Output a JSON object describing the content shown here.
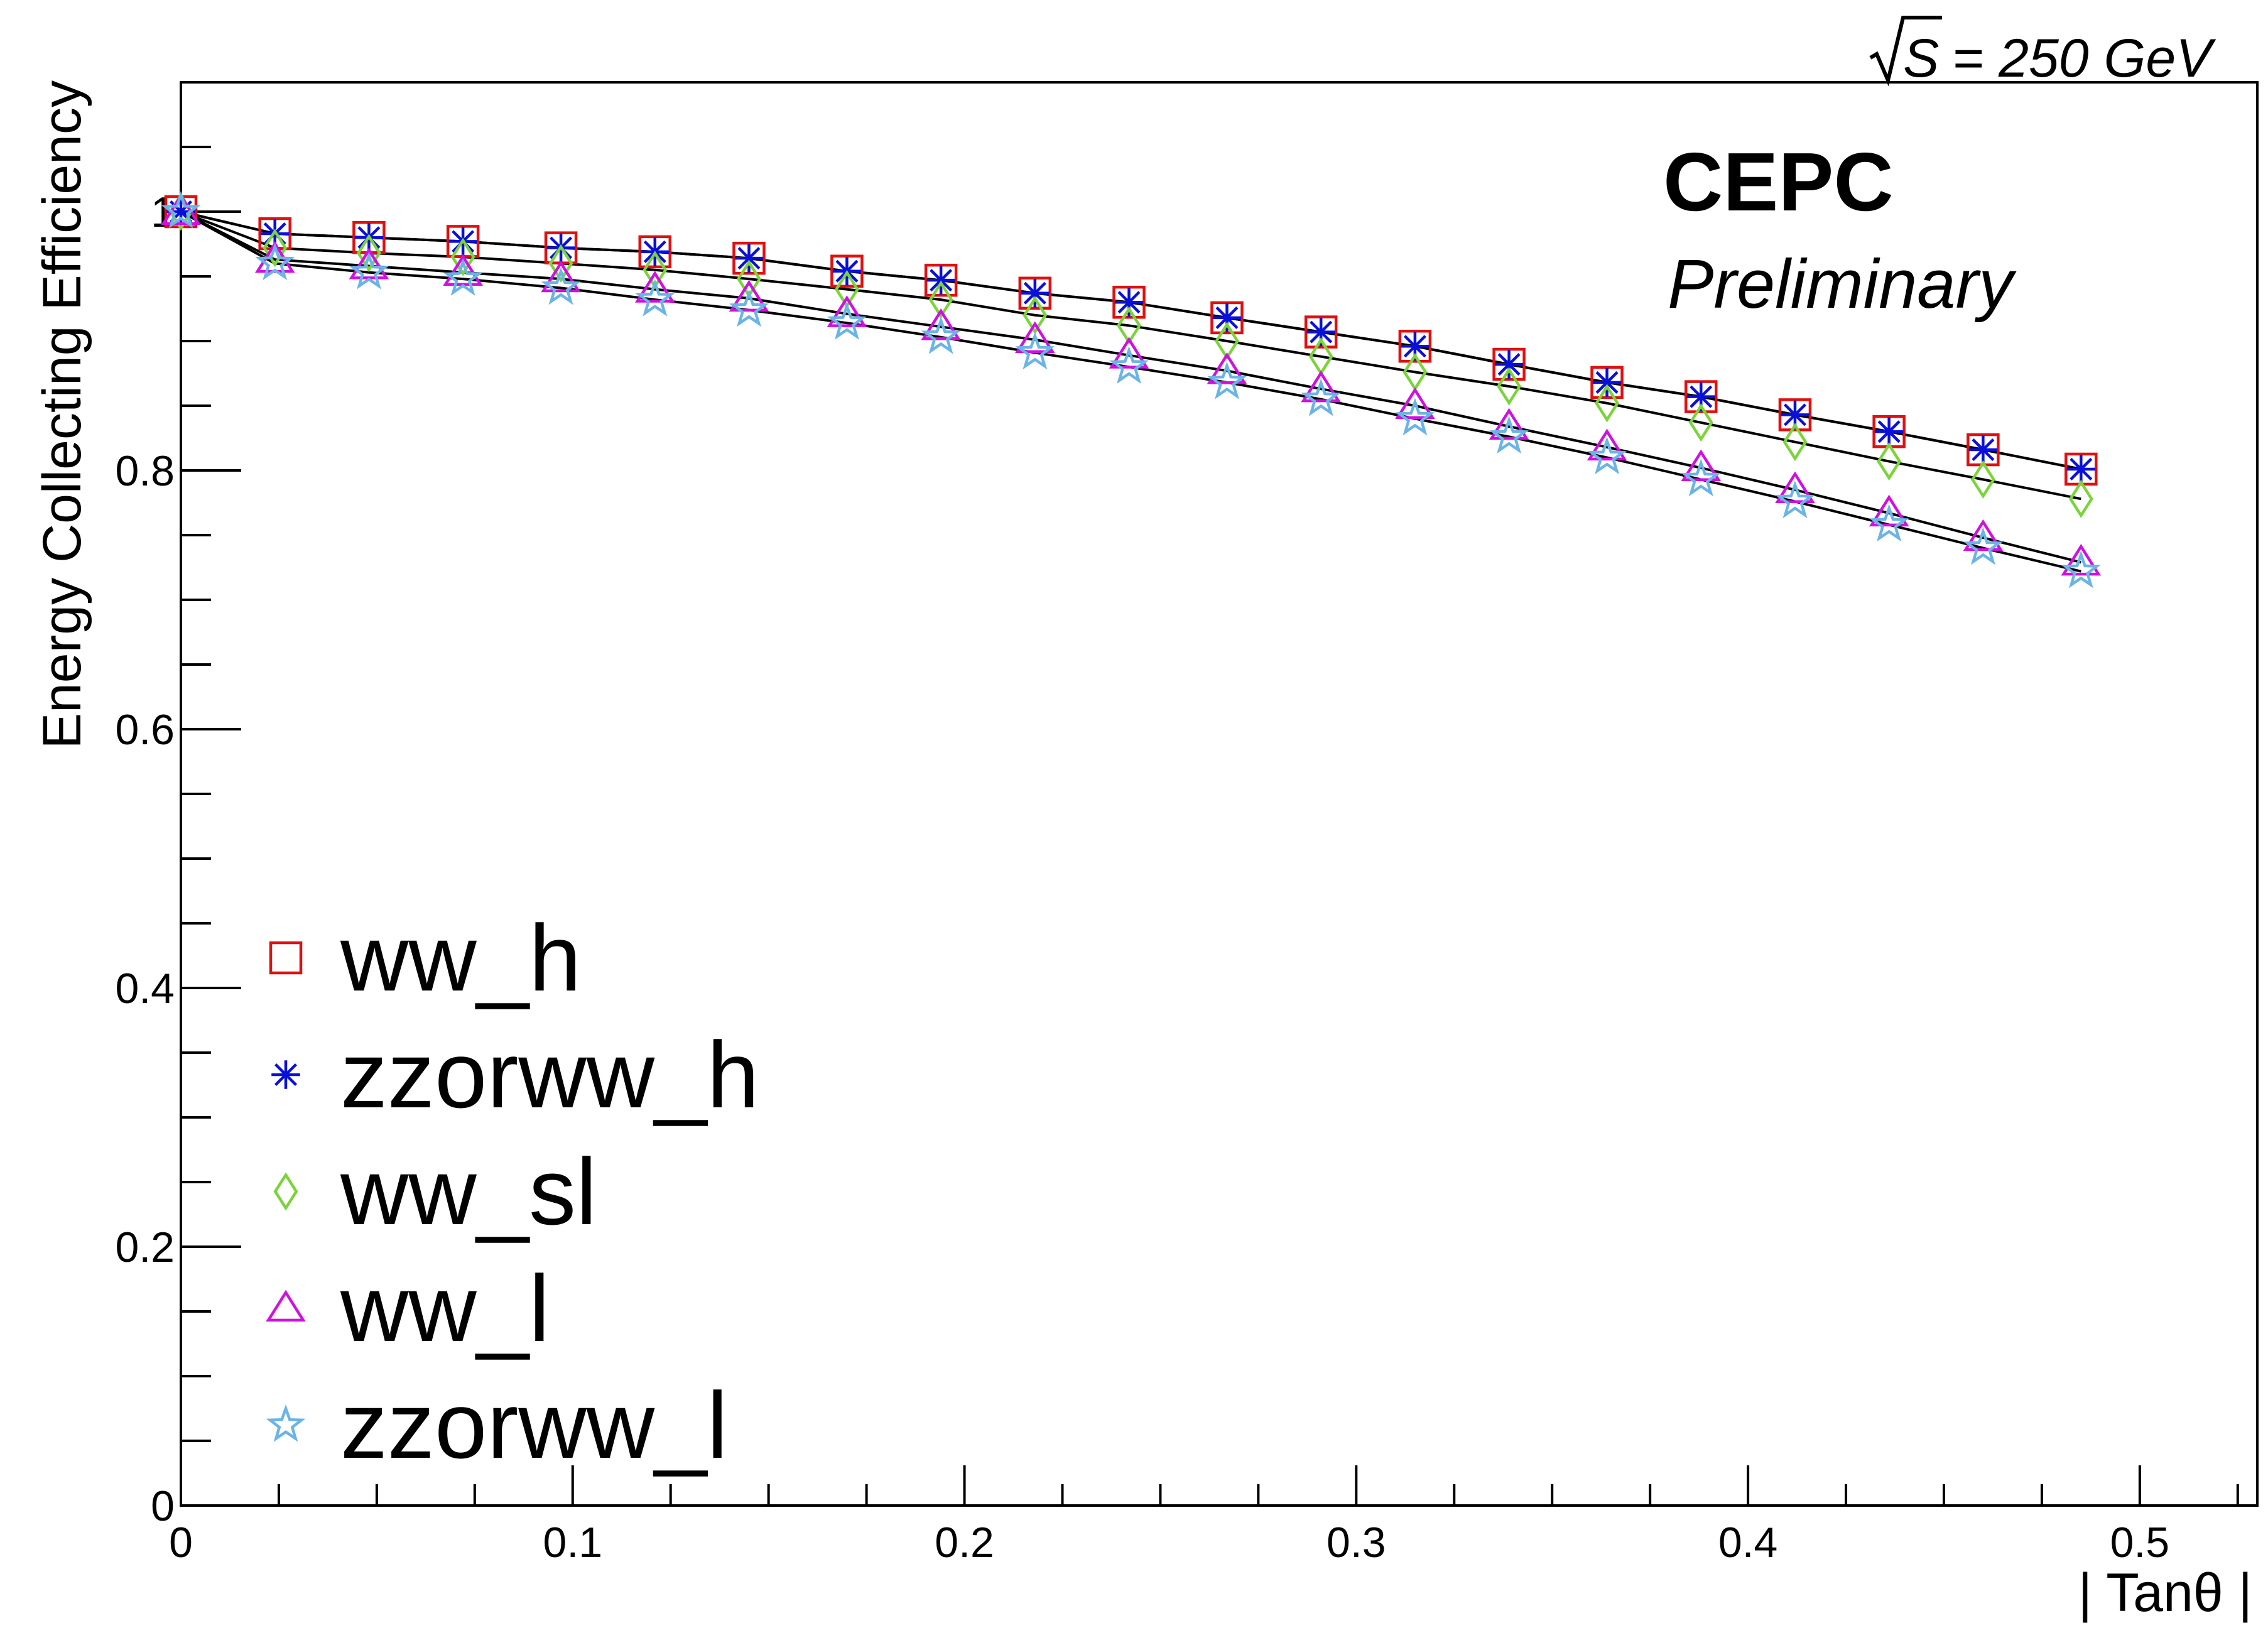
{
  "chart_data": {
    "type": "line",
    "energy_label": "= 250 GeV",
    "energy_symbol": "S",
    "experiment": "CEPC",
    "status": "Preliminary",
    "xlabel": "| Tanθ |",
    "ylabel": "Energy Collecting Efficiency",
    "xlim": [
      0,
      0.53
    ],
    "ylim": [
      0,
      1.1
    ],
    "xticks": [
      {
        "value": 0,
        "label": "0"
      },
      {
        "value": 0.1,
        "label": "0.1"
      },
      {
        "value": 0.2,
        "label": "0.2"
      },
      {
        "value": 0.3,
        "label": "0.3"
      },
      {
        "value": 0.4,
        "label": "0.4"
      },
      {
        "value": 0.5,
        "label": "0.5"
      }
    ],
    "yticks": [
      {
        "value": 0,
        "label": "0"
      },
      {
        "value": 0.2,
        "label": "0.2"
      },
      {
        "value": 0.4,
        "label": "0.4"
      },
      {
        "value": 0.6,
        "label": "0.6"
      },
      {
        "value": 0.8,
        "label": "0.8"
      },
      {
        "value": 1,
        "label": "1"
      }
    ],
    "x": [
      0,
      0.024,
      0.048,
      0.072,
      0.097,
      0.121,
      0.145,
      0.17,
      0.194,
      0.218,
      0.242,
      0.267,
      0.291,
      0.315,
      0.339,
      0.364,
      0.388,
      0.412,
      0.436,
      0.46,
      0.485
    ],
    "series": [
      {
        "name": "ww_h",
        "marker": "square",
        "color": "#e01010",
        "values": [
          1.0,
          0.983,
          0.98,
          0.977,
          0.972,
          0.969,
          0.964,
          0.954,
          0.947,
          0.937,
          0.93,
          0.918,
          0.907,
          0.896,
          0.882,
          0.868,
          0.857,
          0.843,
          0.83,
          0.816,
          0.801
        ]
      },
      {
        "name": "zzorww_h",
        "marker": "asterisk",
        "color": "#0a10d8",
        "values": [
          1.0,
          0.983,
          0.98,
          0.977,
          0.972,
          0.969,
          0.964,
          0.954,
          0.947,
          0.937,
          0.93,
          0.918,
          0.907,
          0.896,
          0.882,
          0.868,
          0.857,
          0.843,
          0.83,
          0.816,
          0.801
        ]
      },
      {
        "name": "ww_sl",
        "marker": "diamond",
        "color": "#7ad43a",
        "values": [
          1.0,
          0.972,
          0.968,
          0.965,
          0.96,
          0.955,
          0.948,
          0.94,
          0.932,
          0.92,
          0.912,
          0.9,
          0.888,
          0.876,
          0.865,
          0.852,
          0.837,
          0.822,
          0.807,
          0.793,
          0.778
        ]
      },
      {
        "name": "ww_l",
        "marker": "triangle",
        "color": "#d010e0",
        "values": [
          1.0,
          0.963,
          0.958,
          0.953,
          0.948,
          0.94,
          0.933,
          0.921,
          0.911,
          0.901,
          0.889,
          0.877,
          0.863,
          0.85,
          0.834,
          0.818,
          0.802,
          0.785,
          0.767,
          0.748,
          0.729
        ]
      },
      {
        "name": "zzorww_l",
        "marker": "star",
        "color": "#6ab4e6",
        "values": [
          1.0,
          0.96,
          0.953,
          0.948,
          0.941,
          0.932,
          0.924,
          0.914,
          0.903,
          0.891,
          0.88,
          0.868,
          0.855,
          0.84,
          0.826,
          0.81,
          0.793,
          0.776,
          0.758,
          0.74,
          0.722
        ]
      }
    ],
    "legend_position": "lower-left"
  }
}
